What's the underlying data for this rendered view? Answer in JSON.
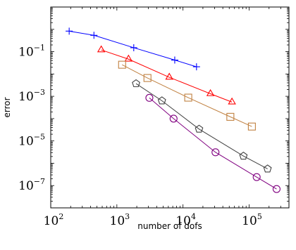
{
  "chart_data": {
    "type": "line",
    "xlabel": "number of dofs",
    "ylabel": "error",
    "x_scale": "log",
    "y_scale": "log",
    "xlim": [
      100,
      400000
    ],
    "ylim": [
      1e-08,
      10
    ],
    "grid": false,
    "legend": "none",
    "x_ticks": [
      {
        "base": "10",
        "exp": "2",
        "value": 100
      },
      {
        "base": "10",
        "exp": "3",
        "value": 1000
      },
      {
        "base": "10",
        "exp": "4",
        "value": 10000
      },
      {
        "base": "10",
        "exp": "5",
        "value": 100000
      }
    ],
    "y_ticks": [
      {
        "base": "10",
        "exp": "−1",
        "value": 0.1
      },
      {
        "base": "10",
        "exp": "−3",
        "value": 0.001
      },
      {
        "base": "10",
        "exp": "−5",
        "value": 1e-05
      },
      {
        "base": "10",
        "exp": "−7",
        "value": 1e-07
      }
    ],
    "series": [
      {
        "color": "#0000ff",
        "marker": "plus",
        "x": [
          190,
          450,
          1800,
          7500,
          16000
        ],
        "y": [
          0.83,
          0.54,
          0.15,
          0.042,
          0.021
        ]
      },
      {
        "color": "#ff0000",
        "marker": "triangle",
        "x": [
          580,
          1500,
          6200,
          26000,
          55000
        ],
        "y": [
          0.12,
          0.046,
          0.0071,
          0.0013,
          0.00055
        ]
      },
      {
        "color": "#c08040",
        "marker": "square",
        "x": [
          1200,
          2900,
          12000,
          52000,
          110000
        ],
        "y": [
          0.026,
          0.0066,
          0.00087,
          0.00012,
          4.4e-05
        ]
      },
      {
        "color": "#404040",
        "marker": "pentagon",
        "x": [
          1950,
          4800,
          17500,
          82000,
          190000
        ],
        "y": [
          0.0037,
          0.00063,
          3.4e-05,
          2.1e-06,
          5.6e-07
        ]
      },
      {
        "color": "#800080",
        "marker": "circle",
        "x": [
          3100,
          7200,
          31000,
          130000,
          260000
        ],
        "y": [
          0.00085,
          0.0001,
          3.1e-06,
          2.4e-07,
          7e-08
        ]
      }
    ]
  }
}
